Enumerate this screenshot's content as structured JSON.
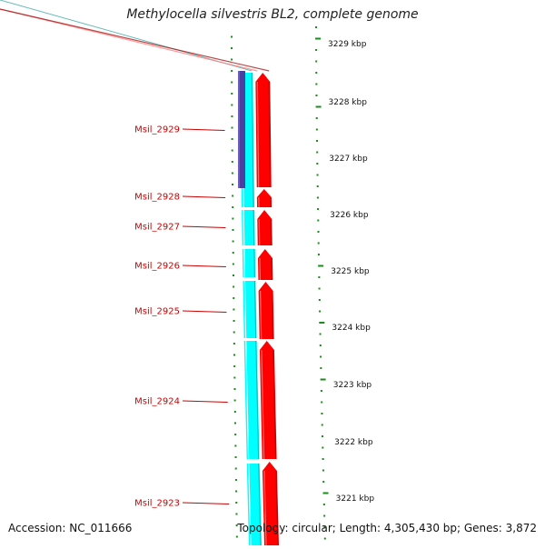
{
  "header": {
    "title": "Methylocella silvestris BL2, complete genome"
  },
  "footer": {
    "accession": "Accession: NC_011666",
    "summary": "Topology: circular; Length: 4,305,430 bp; Genes: 3,872"
  },
  "ruler": {
    "unit": "kbp",
    "labels": [
      "3229 kbp",
      "3228 kbp",
      "3227 kbp",
      "3226 kbp",
      "3225 kbp",
      "3224 kbp",
      "3223 kbp",
      "3222 kbp",
      "3221 kbp"
    ]
  },
  "genes": [
    {
      "label": "Msil_2929"
    },
    {
      "label": "Msil_2928"
    },
    {
      "label": "Msil_2927"
    },
    {
      "label": "Msil_2926"
    },
    {
      "label": "Msil_2925"
    },
    {
      "label": "Msil_2924"
    },
    {
      "label": "Msil_2923"
    }
  ],
  "colors": {
    "forward_cds": "#ff0000",
    "reverse_track": "#00ffff",
    "highlight_feature": "#4b3fa0",
    "gene_label": "#cc0000",
    "tick": "#1a8c1a",
    "backbone": "#888888"
  }
}
